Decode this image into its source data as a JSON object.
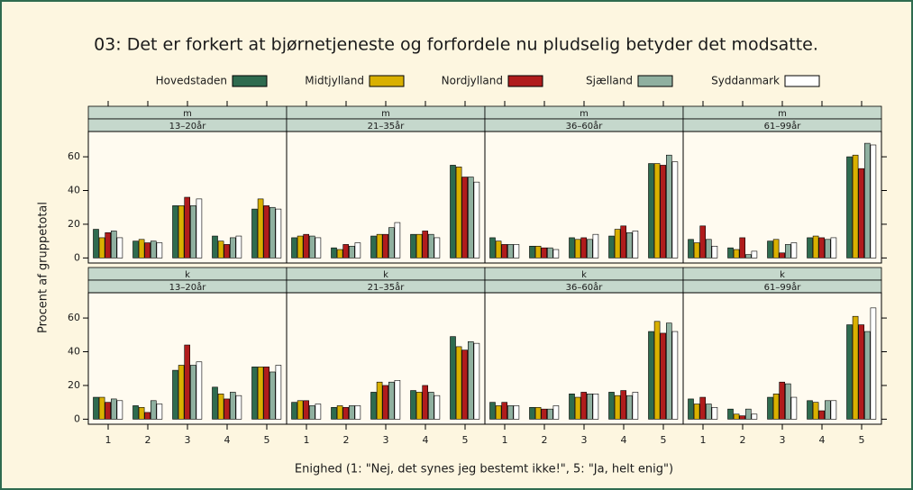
{
  "chart_data": {
    "type": "bar",
    "title": "03: Det er forkert at bjørnetjeneste og forfordele nu pludselig betyder det modsatte.",
    "xlabel": "Enighed (1: \"Nej, det synes jeg bestemt ikke!\", 5: \"Ja, helt enig\")",
    "ylabel": "Procent af gruppetotal",
    "categories": [
      "1",
      "2",
      "3",
      "4",
      "5"
    ],
    "ylim": [
      -3,
      75
    ],
    "yticks": [
      0,
      20,
      40,
      60
    ],
    "series": [
      {
        "name": "Hovedstaden",
        "color": "#2e6b4f"
      },
      {
        "name": "Midtjylland",
        "color": "#d9b000"
      },
      {
        "name": "Nordjylland",
        "color": "#b01c1c"
      },
      {
        "name": "Sjælland",
        "color": "#8fb0a0"
      },
      {
        "name": "Syddanmark",
        "color": "#ffffff"
      }
    ],
    "panels": [
      {
        "strips": [
          "m",
          "13–20år"
        ],
        "values": [
          [
            17,
            10,
            31,
            13,
            29
          ],
          [
            12,
            11,
            31,
            10,
            35
          ],
          [
            15,
            9,
            36,
            8,
            31
          ],
          [
            16,
            10,
            31,
            12,
            30
          ],
          [
            12,
            9,
            35,
            13,
            29
          ]
        ]
      },
      {
        "strips": [
          "m",
          "21–35år"
        ],
        "values": [
          [
            12,
            6,
            13,
            14,
            55
          ],
          [
            13,
            5,
            14,
            14,
            54
          ],
          [
            14,
            8,
            14,
            16,
            48
          ],
          [
            13,
            7,
            18,
            14,
            48
          ],
          [
            12,
            9,
            21,
            12,
            45
          ]
        ]
      },
      {
        "strips": [
          "m",
          "36–60år"
        ],
        "values": [
          [
            12,
            7,
            12,
            13,
            56
          ],
          [
            10,
            7,
            11,
            17,
            56
          ],
          [
            8,
            6,
            12,
            19,
            55
          ],
          [
            8,
            6,
            11,
            15,
            61
          ],
          [
            8,
            5,
            14,
            16,
            57
          ]
        ]
      },
      {
        "strips": [
          "m",
          "61–99år"
        ],
        "values": [
          [
            11,
            6,
            10,
            12,
            60
          ],
          [
            9,
            5,
            11,
            13,
            61
          ],
          [
            19,
            12,
            3,
            12,
            53
          ],
          [
            11,
            2,
            8,
            11,
            68
          ],
          [
            7,
            4,
            9,
            12,
            67
          ]
        ]
      },
      {
        "strips": [
          "k",
          "13–20år"
        ],
        "values": [
          [
            13,
            8,
            29,
            19,
            31
          ],
          [
            13,
            7,
            32,
            15,
            31
          ],
          [
            10,
            4,
            44,
            12,
            31
          ],
          [
            12,
            11,
            32,
            16,
            28
          ],
          [
            11,
            9,
            34,
            14,
            32
          ]
        ]
      },
      {
        "strips": [
          "k",
          "21–35år"
        ],
        "values": [
          [
            10,
            7,
            16,
            17,
            49
          ],
          [
            11,
            8,
            22,
            16,
            43
          ],
          [
            11,
            7,
            20,
            20,
            41
          ],
          [
            8,
            8,
            22,
            16,
            46
          ],
          [
            9,
            8,
            23,
            14,
            45
          ]
        ]
      },
      {
        "strips": [
          "k",
          "36–60år"
        ],
        "values": [
          [
            10,
            7,
            15,
            16,
            52
          ],
          [
            8,
            7,
            13,
            14,
            58
          ],
          [
            10,
            6,
            16,
            17,
            51
          ],
          [
            8,
            6,
            15,
            14,
            57
          ],
          [
            8,
            8,
            15,
            16,
            52
          ]
        ]
      },
      {
        "strips": [
          "k",
          "61–99år"
        ],
        "values": [
          [
            12,
            6,
            13,
            11,
            56
          ],
          [
            9,
            3,
            15,
            10,
            61
          ],
          [
            13,
            2,
            22,
            5,
            56
          ],
          [
            9,
            6,
            21,
            11,
            52
          ],
          [
            7,
            3,
            13,
            11,
            66
          ]
        ]
      }
    ]
  }
}
